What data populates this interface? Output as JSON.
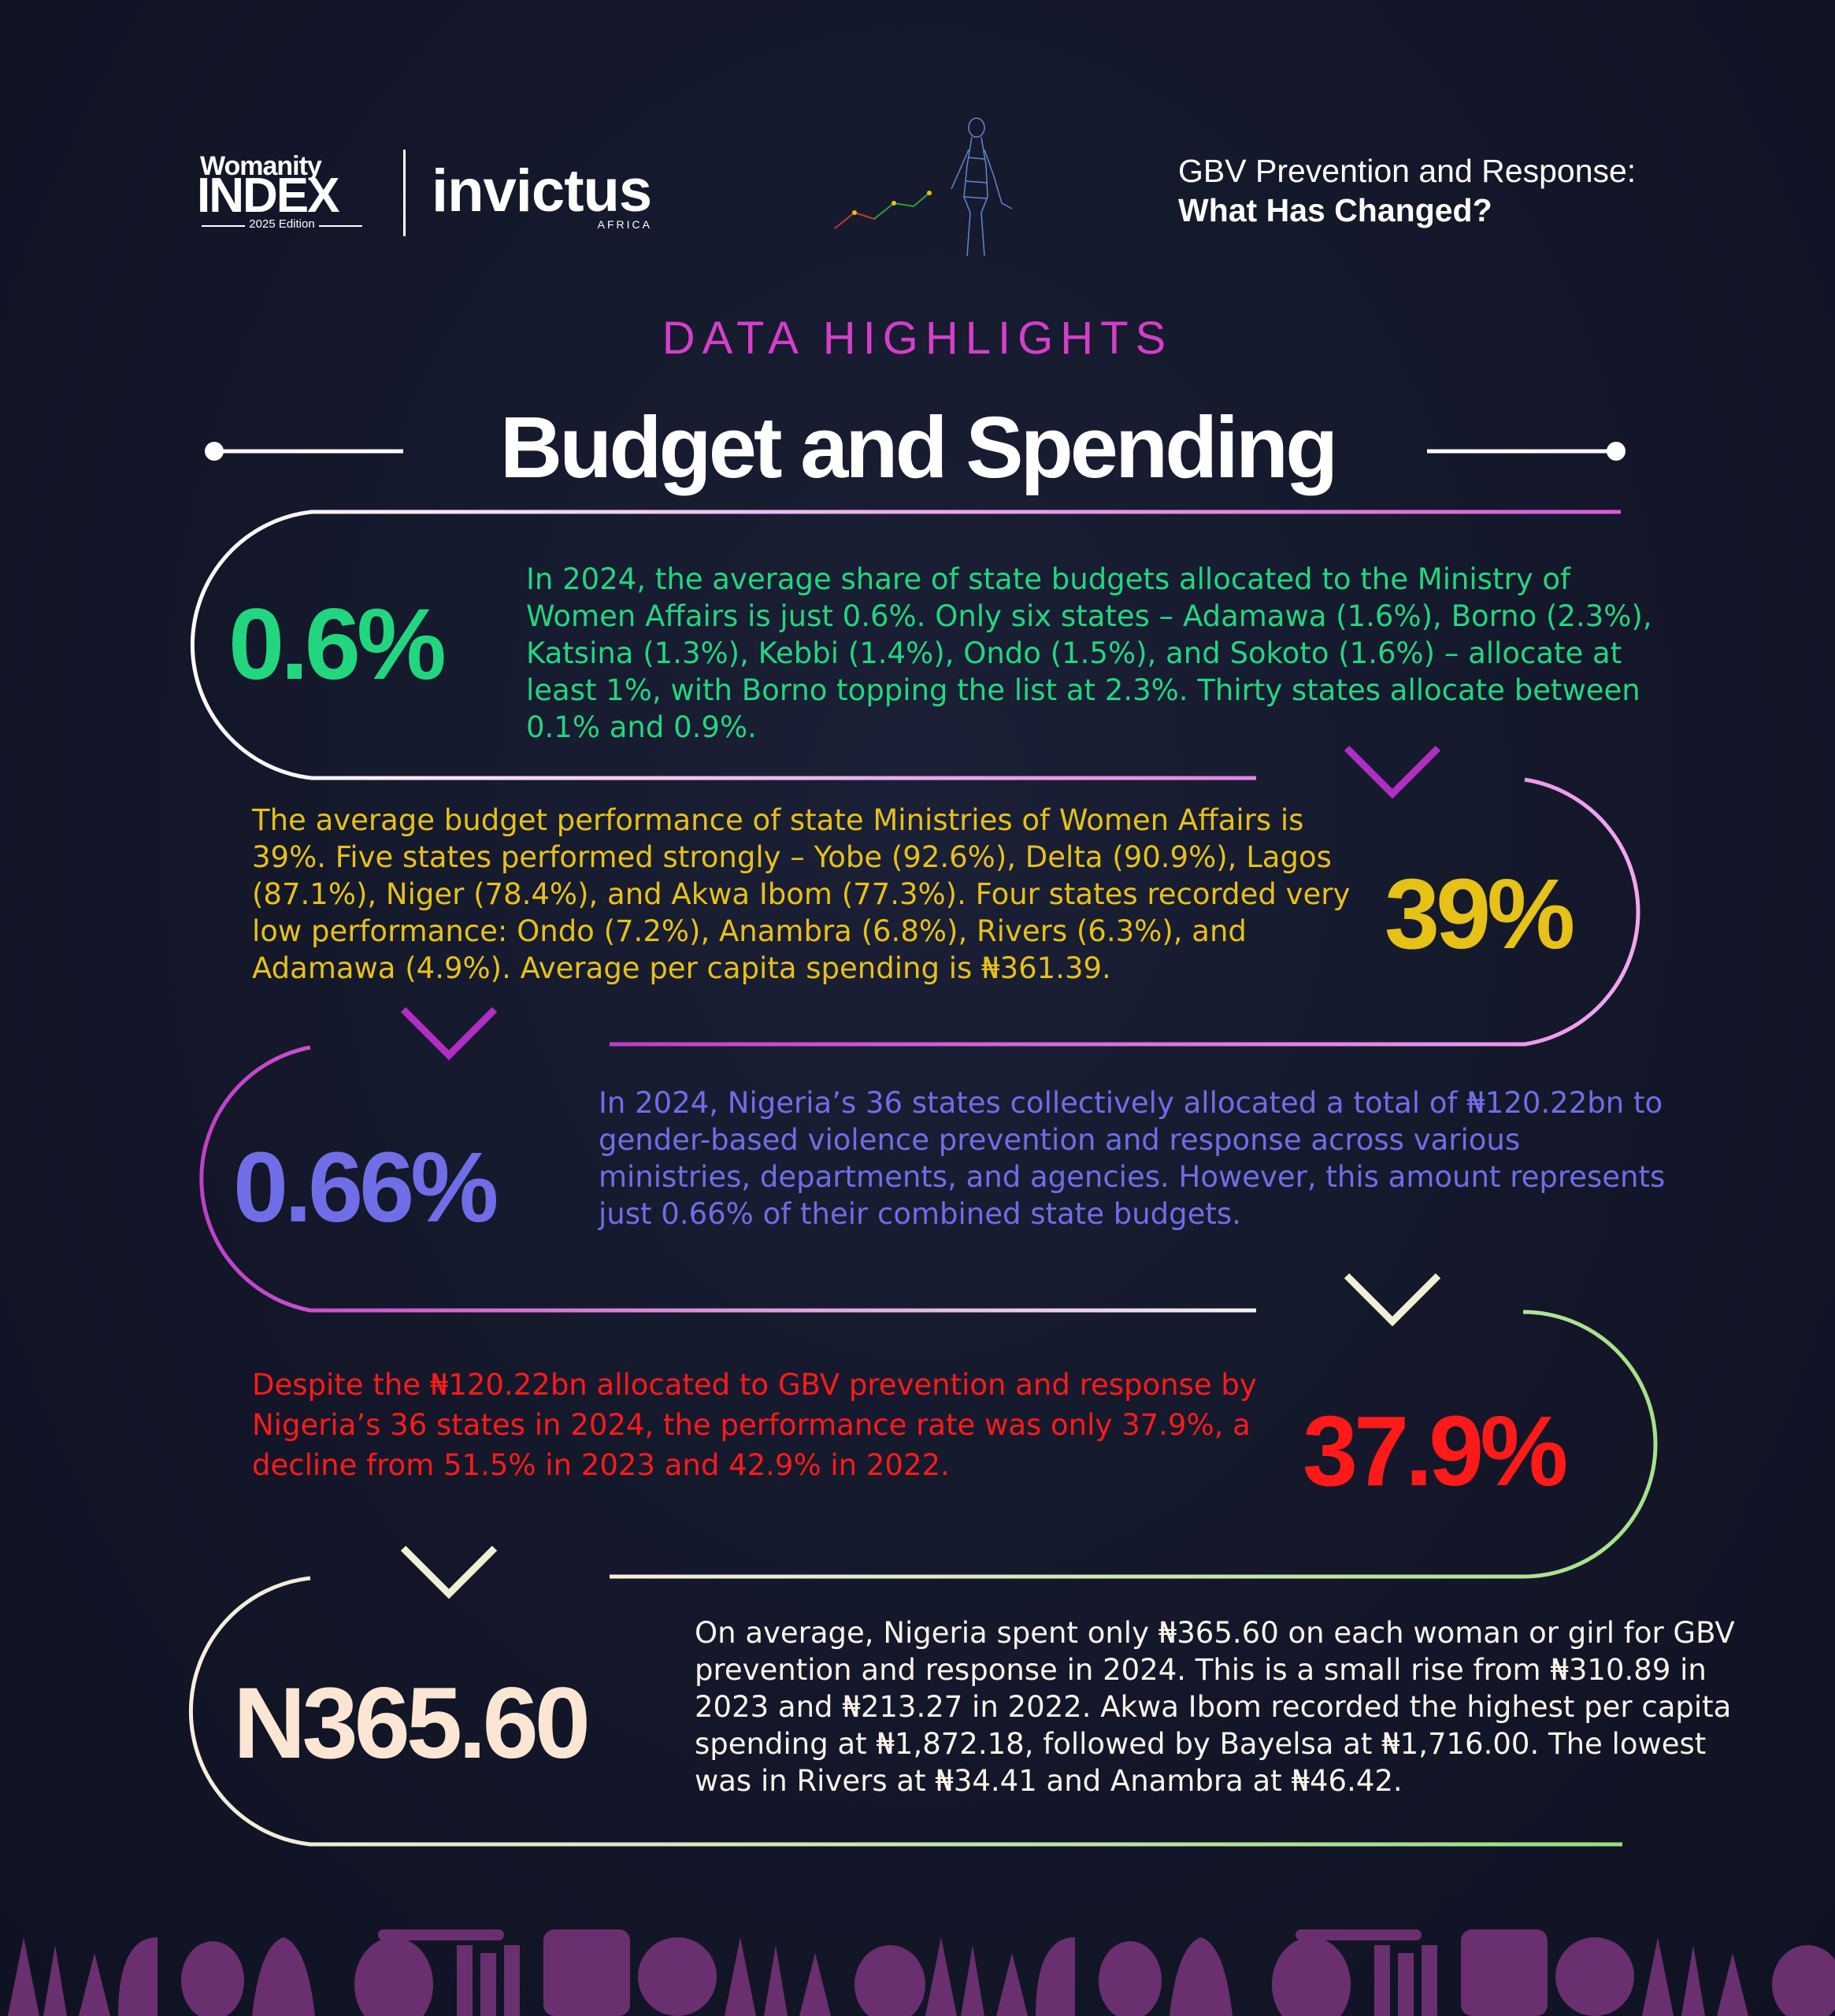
{
  "header": {
    "womanity_top": "Womanity",
    "womanity_main": "INDEX",
    "womanity_edition": "2025 Edition",
    "invictus_main": "invictus",
    "invictus_sub": "AFRICA",
    "title_line1": "GBV Prevention and Response:",
    "title_line2": "What Has Changed?"
  },
  "section_label": "DATA HIGHLIGHTS",
  "page_title": "Budget and Spending",
  "highlights": [
    {
      "stat": "0.6%",
      "color": "#22d67f",
      "text": "In 2024, the average share of state budgets allocated to the Ministry of Women Affairs is just 0.6%. Only six states – Adamawa (1.6%), Borno (2.3%), Katsina (1.3%), Kebbi (1.4%), Ondo (1.5%), and Sokoto (1.6%) – allocate at least 1%, with Borno topping the list at 2.3%. Thirty states allocate between 0.1% and 0.9%."
    },
    {
      "stat": "39%",
      "color": "#e6c118",
      "text": "The average budget performance of state Ministries of Women Affairs is 39%. Five states performed strongly – Yobe (92.6%), Delta (90.9%), Lagos (87.1%), Niger (78.4%), and Akwa Ibom (77.3%). Four states recorded very low performance: Ondo (7.2%), Anambra (6.8%), Rivers (6.3%), and Adamawa (4.9%). Average per capita spending is ₦361.39."
    },
    {
      "stat": "0.66%",
      "color": "#6f6ee6",
      "text": "In 2024, Nigeria’s 36 states collectively allocated a total of ₦120.22bn to gender-based violence prevention and response across various ministries, departments, and agencies. However, this amount represents just 0.66% of their combined state budgets."
    },
    {
      "stat": "37.9%",
      "color": "#ff1a1a",
      "text": "Despite the ₦120.22bn allocated to GBV prevention and response by Nigeria’s 36 states in 2024, the performance rate was only 37.9%, a decline from 51.5% in 2023 and 42.9% in 2022."
    },
    {
      "stat": "N365.60",
      "color": "#fbe6d3",
      "text": "On average, Nigeria spent only ₦365.60 on each woman or girl for GBV prevention and response in 2024. This is a small rise from ₦310.89 in 2023 and ₦213.27 in 2022. Akwa Ibom recorded the highest per capita spending at ₦1,872.18, followed by Bayelsa at ₦1,716.00. The lowest was in Rivers at ₦34.41 and Anambra at ₦46.42."
    }
  ],
  "colors": {
    "background": "#141829",
    "accent_magenta": "#d33fc9",
    "pattern_purple": "#6a2f6e"
  },
  "icons": {
    "figure": "digital-woman-figure-icon",
    "arrow": "chevron-down-icon"
  }
}
